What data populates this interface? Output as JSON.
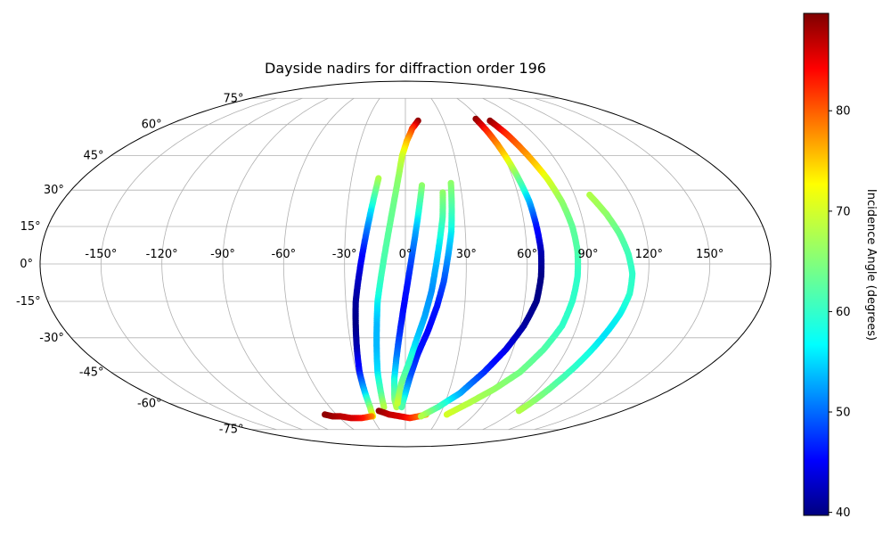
{
  "chart_data": {
    "type": "scatter",
    "projection": "mollweide",
    "title": "Dayside nadirs for diffraction order 196",
    "xlabel": "",
    "ylabel": "",
    "lon_ticks": [
      -150,
      -120,
      -90,
      -60,
      -30,
      0,
      30,
      60,
      90,
      120,
      150
    ],
    "lon_tick_labels": [
      "-150°",
      "-120°",
      "-90°",
      "-60°",
      "-30°",
      "0°",
      "30°",
      "60°",
      "90°",
      "120°",
      "150°"
    ],
    "lat_ticks": [
      -75,
      -60,
      -45,
      -30,
      -15,
      0,
      15,
      30,
      45,
      60,
      75
    ],
    "lat_tick_labels": [
      "-75°",
      "-60°",
      "-45°",
      "-30°",
      "-15°",
      "0°",
      "15°",
      "30°",
      "45°",
      "60°",
      "75°"
    ],
    "grid": true,
    "colormap": "jet",
    "colorbar": {
      "label": "Incidence Angle (degrees)",
      "range": [
        39.7,
        89.7
      ],
      "ticks": [
        40,
        50,
        60,
        70,
        80
      ],
      "tick_labels": [
        "40",
        "50",
        "60",
        "70",
        "80"
      ],
      "placement": "right"
    },
    "series": [
      {
        "track": [
          [
            -15,
            35,
            68
          ],
          [
            -17,
            25,
            60
          ],
          [
            -19,
            15,
            53
          ],
          [
            -21,
            5,
            47
          ],
          [
            -23,
            -5,
            43
          ],
          [
            -25,
            -15,
            41
          ],
          [
            -26,
            -25,
            40
          ],
          [
            -27,
            -35,
            42
          ],
          [
            -28,
            -45,
            47
          ],
          [
            -28,
            -55,
            56
          ],
          [
            -28,
            -62,
            65
          ],
          [
            -29,
            -67,
            72
          ]
        ]
      },
      {
        "track": [
          [
            -30,
            -67,
            78
          ],
          [
            -40,
            -68,
            84
          ],
          [
            -50,
            -68,
            86
          ],
          [
            -58,
            -67,
            87
          ],
          [
            -65,
            -67,
            88
          ],
          [
            -70,
            -66,
            89
          ]
        ]
      },
      {
        "track": [
          [
            10,
            62,
            89
          ],
          [
            5,
            58,
            83
          ],
          [
            1,
            52,
            76
          ],
          [
            -2,
            45,
            70
          ],
          [
            -4,
            35,
            66
          ],
          [
            -6,
            25,
            64
          ],
          [
            -8,
            15,
            63
          ],
          [
            -10,
            5,
            62
          ],
          [
            -12,
            -5,
            61
          ],
          [
            -14,
            -15,
            58
          ],
          [
            -15,
            -25,
            55
          ],
          [
            -16,
            -35,
            55
          ],
          [
            -17,
            -45,
            57
          ],
          [
            -17,
            -55,
            62
          ],
          [
            -17,
            -62,
            68
          ]
        ]
      },
      {
        "track": [
          [
            -22,
            -64,
            89
          ],
          [
            -14,
            -66,
            87
          ],
          [
            -5,
            -67,
            86
          ],
          [
            4,
            -68,
            84
          ],
          [
            12,
            -67,
            80
          ],
          [
            18,
            -66,
            76
          ]
        ]
      },
      {
        "track": [
          [
            9,
            32,
            66
          ],
          [
            7,
            22,
            60
          ],
          [
            5,
            12,
            54
          ],
          [
            3,
            2,
            50
          ],
          [
            1,
            -8,
            47
          ],
          [
            -1,
            -18,
            46
          ],
          [
            -3,
            -28,
            48
          ],
          [
            -5,
            -38,
            52
          ],
          [
            -7,
            -48,
            58
          ],
          [
            -8,
            -58,
            64
          ],
          [
            -7,
            -62,
            68
          ]
        ]
      },
      {
        "track": [
          [
            25,
            33,
            66
          ],
          [
            24,
            23,
            62
          ],
          [
            23,
            13,
            58
          ],
          [
            21,
            3,
            54
          ],
          [
            19,
            -7,
            50
          ],
          [
            16,
            -17,
            47
          ],
          [
            12,
            -27,
            46
          ],
          [
            7,
            -37,
            47
          ],
          [
            3,
            -47,
            50
          ],
          [
            0,
            -55,
            56
          ],
          [
            -3,
            -62,
            62
          ]
        ]
      },
      {
        "track": [
          [
            20,
            29,
            66
          ],
          [
            19,
            19,
            62
          ],
          [
            17,
            9,
            58
          ],
          [
            15,
            -1,
            55
          ],
          [
            13,
            -11,
            53
          ],
          [
            10,
            -21,
            54
          ],
          [
            6,
            -31,
            56
          ],
          [
            2,
            -41,
            60
          ],
          [
            -3,
            -51,
            64
          ],
          [
            -6,
            -60,
            69
          ]
        ]
      },
      {
        "track": [
          [
            57,
            63,
            89
          ],
          [
            59,
            55,
            82
          ],
          [
            61,
            45,
            74
          ],
          [
            63,
            35,
            64
          ],
          [
            65,
            25,
            55
          ],
          [
            66,
            15,
            47
          ],
          [
            67,
            5,
            42
          ],
          [
            67,
            -5,
            40
          ],
          [
            66,
            -15,
            40
          ],
          [
            62,
            -25,
            41
          ],
          [
            56,
            -35,
            44
          ],
          [
            48,
            -45,
            48
          ],
          [
            38,
            -55,
            54
          ],
          [
            26,
            -62,
            61
          ],
          [
            14,
            -67,
            68
          ]
        ]
      },
      {
        "track": [
          [
            67,
            62,
            89
          ],
          [
            71,
            55,
            83
          ],
          [
            75,
            45,
            77
          ],
          [
            79,
            35,
            71
          ],
          [
            82,
            25,
            66
          ],
          [
            84,
            15,
            63
          ],
          [
            85,
            5,
            62
          ],
          [
            85,
            -5,
            60
          ],
          [
            84,
            -15,
            60
          ],
          [
            82,
            -25,
            60
          ],
          [
            77,
            -35,
            62
          ],
          [
            70,
            -45,
            64
          ],
          [
            60,
            -53,
            66
          ],
          [
            48,
            -60,
            68
          ],
          [
            36,
            -66,
            70
          ]
        ]
      },
      {
        "track": [
          [
            98,
            28,
            68
          ],
          [
            103,
            20,
            66
          ],
          [
            107,
            12,
            63
          ],
          [
            110,
            4,
            61
          ],
          [
            112,
            -4,
            60
          ],
          [
            112,
            -12,
            60
          ],
          [
            110,
            -20,
            58
          ],
          [
            106,
            -30,
            57
          ],
          [
            102,
            -40,
            59
          ],
          [
            98,
            -50,
            62
          ],
          [
            95,
            -60,
            66
          ],
          [
            94,
            -64,
            68
          ]
        ]
      }
    ]
  }
}
